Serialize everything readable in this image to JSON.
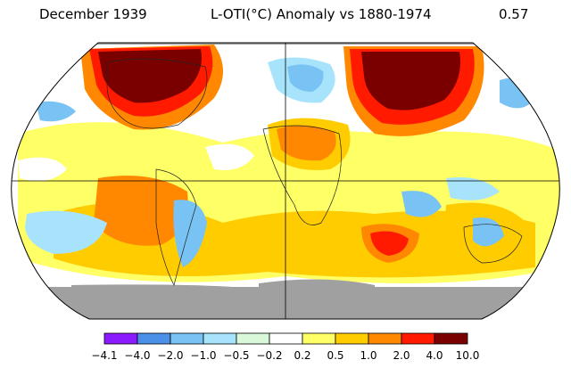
{
  "header": {
    "date": "December 1939",
    "title": "L-OTI(°C) Anomaly vs 1880-1974",
    "value": "0.57"
  },
  "legend": {
    "colors": [
      "#8b1aff",
      "#4a90e8",
      "#78c3f4",
      "#a7e4fb",
      "#d9f7d9",
      "#ffffff",
      "#ffff66",
      "#ffcc00",
      "#ff8800",
      "#ff1a00",
      "#7a0000"
    ],
    "labels": [
      "−4.1",
      "−4.0",
      "−2.0",
      "−1.0",
      "−0.5",
      "−0.2",
      "0.2",
      "0.5",
      "1.0",
      "2.0",
      "4.0",
      "10.0"
    ]
  },
  "map": {
    "no_data_color": "#a0a0a0",
    "ocean_color": "#ffffff",
    "projection": "robinson"
  }
}
